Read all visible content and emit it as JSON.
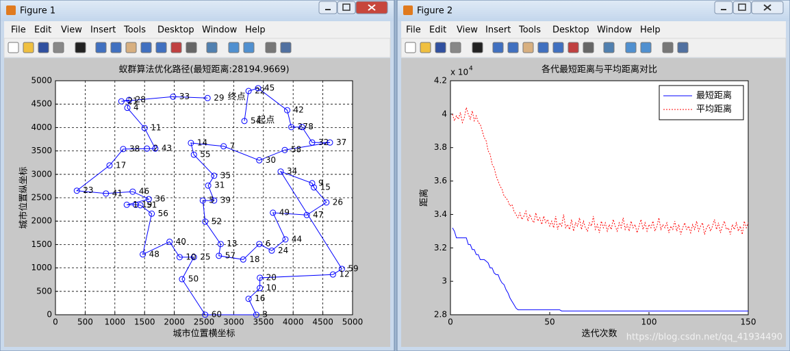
{
  "windows": [
    {
      "title": "Figure 1",
      "menu": [
        "File",
        "Edit",
        "View",
        "Insert",
        "Tools",
        "Desktop",
        "Window",
        "Help"
      ]
    },
    {
      "title": "Figure 2",
      "menu": [
        "File",
        "Edit",
        "View",
        "Insert",
        "Tools",
        "Desktop",
        "Window",
        "Help"
      ]
    }
  ],
  "chart_data": [
    {
      "type": "line",
      "title": "蚁群算法优化路径(最短距离:28194.9669)",
      "xlabel": "城市位置横坐标",
      "ylabel": "城市位置纵坐标",
      "color": "#0000ff",
      "marker": "circle",
      "grid": true,
      "x": [
        3180,
        3250,
        3410,
        3900,
        3970,
        4150,
        4320,
        4620,
        3860,
        3430,
        2830,
        2280,
        2330,
        2670,
        2570,
        2670,
        2480,
        2520,
        2780,
        2750,
        3160,
        3430,
        3640,
        3870,
        3660,
        4230,
        4560,
        4350,
        4320,
        3790,
        4820,
        4670,
        3440,
        3440,
        3250,
        3380,
        2520,
        2130,
        2330,
        2090,
        1920,
        1470,
        1620,
        1430,
        1350,
        1200,
        1570,
        1300,
        850,
        360,
        910,
        1140,
        1540,
        1680,
        1500,
        1210,
        1240,
        1110,
        1980,
        2560
      ],
      "values": [
        4140,
        4780,
        4840,
        4370,
        4010,
        4010,
        3680,
        3680,
        3520,
        3300,
        3600,
        3670,
        3420,
        2970,
        2760,
        2440,
        2440,
        1990,
        1510,
        1260,
        1180,
        1510,
        1370,
        1610,
        2180,
        2130,
        2400,
        2720,
        2810,
        3060,
        980,
        860,
        790,
        570,
        340,
        0,
        0,
        760,
        1230,
        1230,
        1560,
        1290,
        2160,
        2340,
        2350,
        2350,
        2470,
        2630,
        2590,
        2650,
        3190,
        3540,
        3550,
        3550,
        3990,
        4420,
        4590,
        4560,
        4660,
        4630
      ],
      "point_labels": [
        "54",
        "22",
        "45",
        "42",
        "27",
        "8",
        "32",
        "37",
        "58",
        "30",
        "7",
        "14",
        "55",
        "35",
        "31",
        "39",
        "5",
        "52",
        "13",
        "57",
        "18",
        "6",
        "24",
        "44",
        "49",
        "47",
        "26",
        "15",
        "9",
        "34",
        "59",
        "12",
        "20",
        "10",
        "16",
        "3",
        "60",
        "50",
        "25",
        "10",
        "40",
        "48",
        "56",
        "51",
        "19",
        "1",
        "36",
        "46",
        "41",
        "23",
        "17",
        "38",
        "2",
        "43",
        "11",
        "4",
        "28",
        "21",
        "33",
        "29"
      ],
      "annotations": [
        {
          "text": "终点",
          "x": 3050,
          "y": 4650
        },
        {
          "text": "起点",
          "x": 3540,
          "y": 4150
        }
      ],
      "xlim": [
        0,
        5000
      ],
      "xticks": [
        0,
        500,
        1000,
        1500,
        2000,
        2500,
        3000,
        3500,
        4000,
        4500,
        5000
      ],
      "ylim": [
        0,
        5000
      ],
      "yticks": [
        0,
        500,
        1000,
        1500,
        2000,
        2500,
        3000,
        3500,
        4000,
        4500,
        5000
      ]
    },
    {
      "type": "line",
      "title": "各代最短距离与平均距离对比",
      "xlabel": "迭代次数",
      "ylabel": "距离",
      "grid": false,
      "legend": "upper right",
      "y_multiplier": {
        "base": "x 10",
        "exponent": "4"
      },
      "x": [
        1,
        2,
        3,
        4,
        5,
        6,
        7,
        8,
        9,
        10,
        11,
        12,
        13,
        14,
        15,
        16,
        17,
        18,
        19,
        20,
        21,
        22,
        23,
        24,
        25,
        26,
        27,
        28,
        29,
        30,
        31,
        32,
        33,
        34,
        35,
        36,
        37,
        38,
        39,
        40,
        41,
        42,
        43,
        44,
        45,
        46,
        47,
        48,
        49,
        50,
        51,
        52,
        53,
        54,
        55,
        56,
        57,
        58,
        59,
        60,
        61,
        62,
        63,
        64,
        65,
        66,
        67,
        68,
        69,
        70,
        71,
        72,
        73,
        74,
        75,
        76,
        77,
        78,
        79,
        80,
        81,
        82,
        83,
        84,
        85,
        86,
        87,
        88,
        89,
        90,
        91,
        92,
        93,
        94,
        95,
        96,
        97,
        98,
        99,
        100,
        101,
        102,
        103,
        104,
        105,
        106,
        107,
        108,
        109,
        110,
        111,
        112,
        113,
        114,
        115,
        116,
        117,
        118,
        119,
        120,
        121,
        122,
        123,
        124,
        125,
        126,
        127,
        128,
        129,
        130,
        131,
        132,
        133,
        134,
        135,
        136,
        137,
        138,
        139,
        140,
        141,
        142,
        143,
        144,
        145,
        146,
        147,
        148,
        149,
        150
      ],
      "series": [
        {
          "name": "最短距离",
          "color": "#0000ff",
          "dash": "solid",
          "values": [
            33200,
            33000,
            32600,
            32600,
            32600,
            32600,
            32600,
            32600,
            32200,
            32200,
            31900,
            31900,
            31600,
            31600,
            31300,
            31300,
            31300,
            31200,
            31100,
            30800,
            30800,
            30500,
            30400,
            30400,
            30100,
            29900,
            29800,
            29500,
            29300,
            29000,
            28800,
            28600,
            28400,
            28300,
            28300,
            28300,
            28300,
            28300,
            28300,
            28300,
            28300,
            28300,
            28300,
            28300,
            28300,
            28300,
            28300,
            28300,
            28300,
            28300,
            28300,
            28300,
            28300,
            28300,
            28300,
            28220,
            28220,
            28220,
            28220,
            28220,
            28220,
            28220,
            28220,
            28220,
            28220,
            28220,
            28220,
            28220,
            28220,
            28220,
            28220,
            28220,
            28220,
            28220,
            28220,
            28220,
            28220,
            28220,
            28220,
            28220,
            28220,
            28220,
            28220,
            28220,
            28220,
            28220,
            28220,
            28220,
            28220,
            28220,
            28220,
            28220,
            28220,
            28220,
            28220,
            28220,
            28220,
            28220,
            28220,
            28220,
            28220,
            28220,
            28220,
            28220,
            28220,
            28220,
            28220,
            28220,
            28220,
            28220,
            28220,
            28220,
            28220,
            28220,
            28220,
            28220,
            28220,
            28220,
            28220,
            28220,
            28220,
            28220,
            28220,
            28220,
            28220,
            28220,
            28220,
            28220,
            28220,
            28220,
            28220,
            28220,
            28220,
            28220,
            28220,
            28220,
            28220,
            28220,
            28220,
            28220,
            28220,
            28220,
            28220,
            28220,
            28220,
            28220,
            28220,
            28220,
            28220,
            28220
          ]
        },
        {
          "name": "平均距离",
          "color": "#ff0000",
          "dash": "dotted",
          "values": [
            40000,
            39600,
            39900,
            39700,
            40100,
            39500,
            39800,
            40400,
            40000,
            39700,
            40200,
            39600,
            39900,
            39500,
            39400,
            39000,
            38600,
            38400,
            37800,
            37600,
            37000,
            36800,
            36300,
            36000,
            35700,
            35500,
            35100,
            35000,
            34800,
            34500,
            34600,
            34200,
            34000,
            33800,
            34100,
            33700,
            33900,
            34200,
            33600,
            34000,
            33700,
            33500,
            34100,
            33600,
            33800,
            33400,
            33900,
            33500,
            33700,
            33300,
            33600,
            33200,
            33900,
            33100,
            33500,
            33300,
            34000,
            33200,
            33400,
            33100,
            33700,
            33000,
            33500,
            33300,
            33800,
            33100,
            33600,
            33200,
            33000,
            33500,
            33300,
            33900,
            33100,
            33400,
            32900,
            33600,
            33200,
            33500,
            33000,
            33400,
            33100,
            33700,
            33300,
            33000,
            33500,
            33200,
            33800,
            33100,
            33400,
            33000,
            33600,
            33200,
            33400,
            32900,
            33300,
            33700,
            33100,
            33500,
            33000,
            33400,
            33200,
            33600,
            33000,
            33300,
            33800,
            33100,
            33400,
            33200,
            33500,
            32900,
            33300,
            33100,
            33600,
            33000,
            33400,
            32800,
            33200,
            33500,
            33100,
            33300,
            32900,
            33400,
            33100,
            33600,
            33000,
            33300,
            33500,
            32800,
            33200,
            33400,
            33000,
            33300,
            33700,
            33100,
            33500,
            32900,
            33300,
            33600,
            33100,
            33200,
            32800,
            33400,
            33100,
            33500,
            33000,
            33300,
            32800,
            33600,
            33200,
            33500
          ]
        }
      ],
      "xlim": [
        0,
        150
      ],
      "xticks": [
        0,
        50,
        100,
        150
      ],
      "ylim": [
        28000,
        42000
      ],
      "yticks": [
        {
          "value": 28000,
          "label": "2.8"
        },
        {
          "value": 30000,
          "label": "3"
        },
        {
          "value": 32000,
          "label": "3.2"
        },
        {
          "value": 34000,
          "label": "3.4"
        },
        {
          "value": 36000,
          "label": "3.6"
        },
        {
          "value": 38000,
          "label": "3.8"
        },
        {
          "value": 40000,
          "label": "4"
        },
        {
          "value": 42000,
          "label": "4.2"
        }
      ]
    }
  ],
  "watermark": "https://blog.csdn.net/qq_41934490"
}
